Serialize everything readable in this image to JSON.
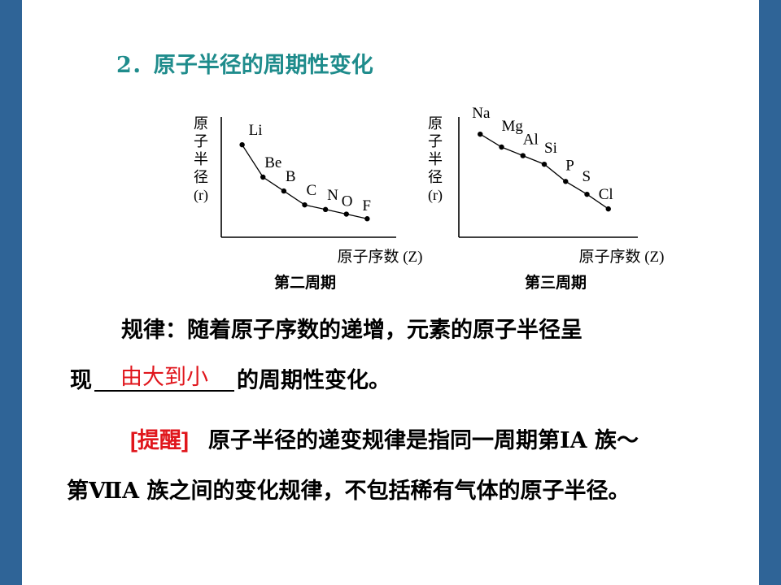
{
  "slide": {
    "title": "2．原子半径的周期性变化",
    "rule_line1": "规律：随着原子序数的递增，元素的原子半径呈",
    "rule_line2_prefix": "现",
    "rule_answer": "由大到小",
    "rule_line2_suffix": "的周期性变化。",
    "tip_label": "[提醒]",
    "tip_line1": "原子半径的递变规律是指同一周期第ⅠA 族～",
    "tip_line2": "第ⅦA 族之间的变化规律，不包括稀有气体的原子半径。"
  },
  "colors": {
    "side_bar": "#2f6497",
    "title": "#1f8c8c",
    "answer": "#e0161c",
    "tip_label": "#e0161c"
  },
  "chart_data": [
    {
      "type": "line",
      "caption": "第二周期",
      "ylabel_chars": [
        "原",
        "子",
        "半",
        "径",
        "(r)"
      ],
      "xlabel": "原子序数 (Z)",
      "points": [
        {
          "label": "Li",
          "z": 3,
          "r": 10.0
        },
        {
          "label": "Be",
          "z": 4,
          "r": 6.5
        },
        {
          "label": "B",
          "z": 5,
          "r": 5.0
        },
        {
          "label": "C",
          "z": 6,
          "r": 3.5
        },
        {
          "label": "N",
          "z": 7,
          "r": 3.0
        },
        {
          "label": "O",
          "z": 8,
          "r": 2.5
        },
        {
          "label": "F",
          "z": 9,
          "r": 2.0
        }
      ],
      "xlim": [
        2,
        10
      ],
      "ylim": [
        0,
        13
      ],
      "grid": false
    },
    {
      "type": "line",
      "caption": "第三周期",
      "ylabel_chars": [
        "原",
        "子",
        "半",
        "径",
        "(r)"
      ],
      "xlabel": "原子序数 (Z)",
      "points": [
        {
          "label": "Na",
          "z": 11,
          "r": 12.0
        },
        {
          "label": "Mg",
          "z": 12,
          "r": 10.5
        },
        {
          "label": "Al",
          "z": 13,
          "r": 9.5
        },
        {
          "label": "Si",
          "z": 14,
          "r": 8.5
        },
        {
          "label": "P",
          "z": 15,
          "r": 6.5
        },
        {
          "label": "S",
          "z": 16,
          "r": 5.0
        },
        {
          "label": "Cl",
          "z": 17,
          "r": 3.3
        }
      ],
      "xlim": [
        10,
        18
      ],
      "ylim": [
        0,
        14
      ],
      "grid": false
    }
  ]
}
